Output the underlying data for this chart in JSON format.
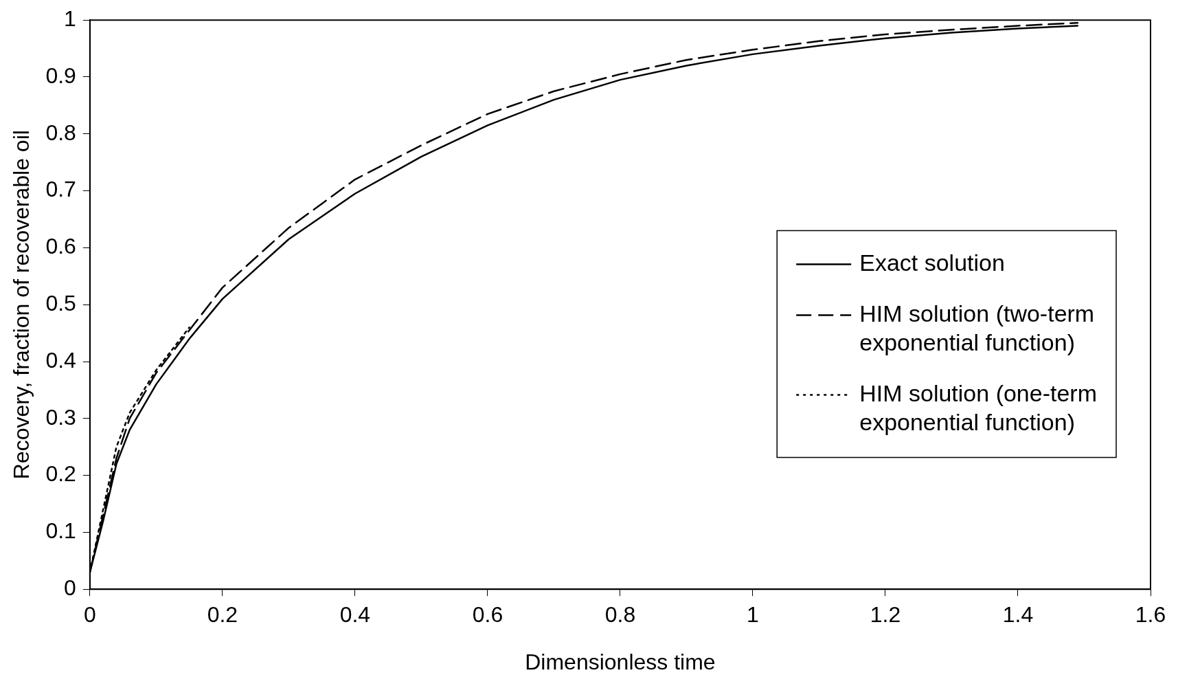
{
  "chart_data": {
    "type": "line",
    "xlabel": "Dimensionless time",
    "ylabel": "Recovery, fraction of recoverable oil",
    "xlim": [
      0,
      1.6
    ],
    "xticks": [
      0,
      0.2,
      0.4,
      0.6,
      0.8,
      1,
      1.2,
      1.4,
      1.6
    ],
    "ylim": [
      0,
      1
    ],
    "yticks": [
      0,
      0.1,
      0.2,
      0.3,
      0.4,
      0.5,
      0.6,
      0.7,
      0.8,
      0.9,
      1
    ],
    "grid": false,
    "legend": "right",
    "marker": "none",
    "x": [
      0,
      0.02,
      0.04,
      0.06,
      0.1,
      0.15,
      0.2,
      0.3,
      0.4,
      0.5,
      0.6,
      0.7,
      0.8,
      0.9,
      1,
      1.1,
      1.2,
      1.3,
      1.4,
      1.49
    ],
    "series": [
      {
        "name": "Exact solution",
        "color": "#000000",
        "line_style": "solid",
        "values": [
          0.03,
          0.12,
          0.22,
          0.28,
          0.36,
          0.44,
          0.51,
          0.615,
          0.695,
          0.76,
          0.815,
          0.86,
          0.895,
          0.92,
          0.94,
          0.955,
          0.968,
          0.978,
          0.985,
          0.99
        ]
      },
      {
        "name": "HIM solution (two-term exponential function)",
        "color": "#000000",
        "line_style": "dashed",
        "values": [
          0.03,
          0.13,
          0.23,
          0.3,
          0.38,
          0.455,
          0.53,
          0.635,
          0.72,
          0.78,
          0.835,
          0.875,
          0.905,
          0.93,
          0.948,
          0.963,
          0.975,
          0.983,
          0.99,
          0.995
        ]
      },
      {
        "name": "HIM solution (one-term exponential function)",
        "color": "#000000",
        "line_style": "dotted",
        "values": [
          0.03,
          0.14,
          0.25,
          0.31,
          0.385,
          0.46,
          null,
          null,
          null,
          null,
          null,
          null,
          null,
          null,
          null,
          null,
          null,
          null,
          null,
          null
        ]
      }
    ]
  }
}
